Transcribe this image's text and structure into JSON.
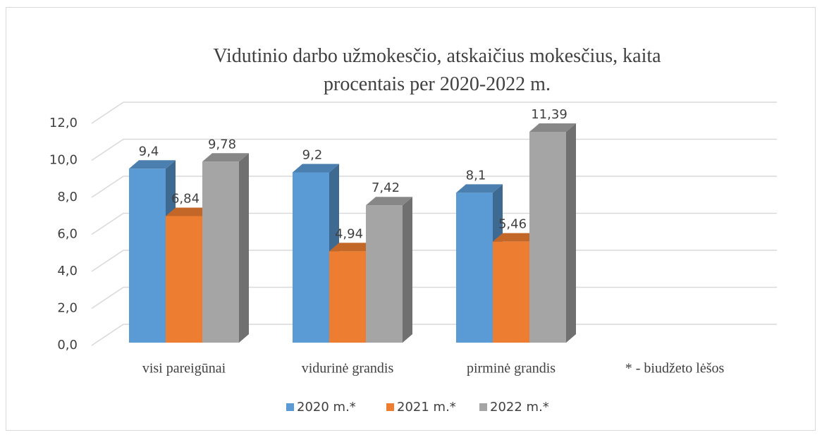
{
  "chart_data": {
    "type": "bar3d",
    "title": "Vidutinio darbo užmokesčio, atskaičius mokesčius, kaita procentais per 2020-2022 m.",
    "categories": [
      "visi pareigūnai",
      "vidurinė grandis",
      "pirminė grandis",
      "* - biudžeto lėšos"
    ],
    "series": [
      {
        "name": "2020 m.*",
        "color": "#5b9bd5",
        "values": [
          9.4,
          9.2,
          8.1,
          null
        ],
        "value_labels": [
          "9,4",
          "9,2",
          "8,1",
          null
        ]
      },
      {
        "name": "2021 m.*",
        "color": "#ed7d31",
        "values": [
          6.84,
          4.94,
          5.46,
          null
        ],
        "value_labels": [
          "6,84",
          "4,94",
          "5,46",
          null
        ]
      },
      {
        "name": "2022 m.*",
        "color": "#a5a5a5",
        "values": [
          9.78,
          7.42,
          11.39,
          null
        ],
        "value_labels": [
          "9,78",
          "7,42",
          "11,39",
          null
        ]
      }
    ],
    "ylim": [
      0,
      12
    ],
    "yticks": [
      {
        "value": 0,
        "label": "0,0"
      },
      {
        "value": 2,
        "label": "2,0"
      },
      {
        "value": 4,
        "label": "4,0"
      },
      {
        "value": 6,
        "label": "6,0"
      },
      {
        "value": 8,
        "label": "8,0"
      },
      {
        "value": 10,
        "label": "10,0"
      },
      {
        "value": 12,
        "label": "12,0"
      }
    ],
    "grid": true,
    "legend": "bottom"
  }
}
